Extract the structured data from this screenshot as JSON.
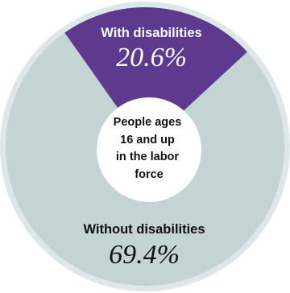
{
  "chart_data": {
    "type": "pie",
    "style": "donut",
    "center_label": [
      "People ages",
      "16 and up",
      "in the labor",
      "force"
    ],
    "slices": [
      {
        "name": "With disabilities",
        "value": 20.6,
        "value_label": "20.6%",
        "color": "#5d3a8e"
      },
      {
        "name": "Without disabilities",
        "value": 69.4,
        "value_label": "69.4%",
        "color": "#c4d3d4"
      }
    ]
  },
  "colors": {
    "ring_outer": "#dee7e8",
    "ring_inner": "#eef3f3",
    "slice_text_light": "#ffffff",
    "slice_text_dark": "#111111",
    "center_fill": "#ffffff"
  }
}
